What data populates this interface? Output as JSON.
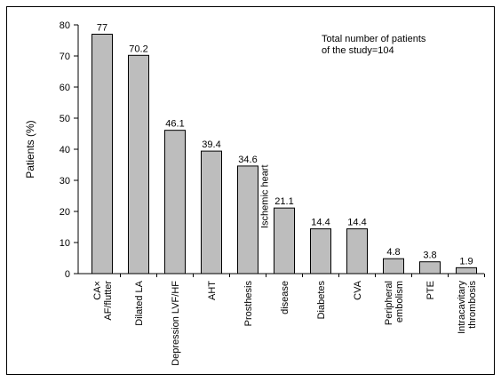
{
  "chart_data": {
    "type": "bar",
    "title": "",
    "ylabel": "Patients (%)",
    "xlabel": "",
    "ylim": [
      0,
      80
    ],
    "yticks": [
      0,
      10,
      20,
      30,
      40,
      50,
      60,
      70,
      80
    ],
    "grid": false,
    "bar_color": "#bdbdbd",
    "categories": [
      [
        "CA×",
        "AF/flutter"
      ],
      [
        "Dilated LA"
      ],
      [
        "Depression LVF/HF"
      ],
      [
        "AHT"
      ],
      [
        "Prosthesis"
      ],
      [
        "disease"
      ],
      [
        "Diabetes"
      ],
      [
        "CVA"
      ],
      [
        "Peripheral",
        "embolism"
      ],
      [
        "PTE"
      ],
      [
        "Intracavitary",
        "thrombosis"
      ]
    ],
    "values": [
      77,
      70.2,
      46.1,
      39.4,
      34.6,
      21.1,
      14.4,
      14.4,
      4.8,
      3.8,
      1.9
    ],
    "value_labels": [
      "77",
      "70.2",
      "46.1",
      "39.4",
      "34.6",
      "21.1",
      "14.4",
      "14.4",
      "4.8",
      "3.8",
      "1.9"
    ],
    "overlay_label": "Ischemic heart",
    "annotation": [
      "Total number of patients",
      "of the study=104"
    ]
  }
}
